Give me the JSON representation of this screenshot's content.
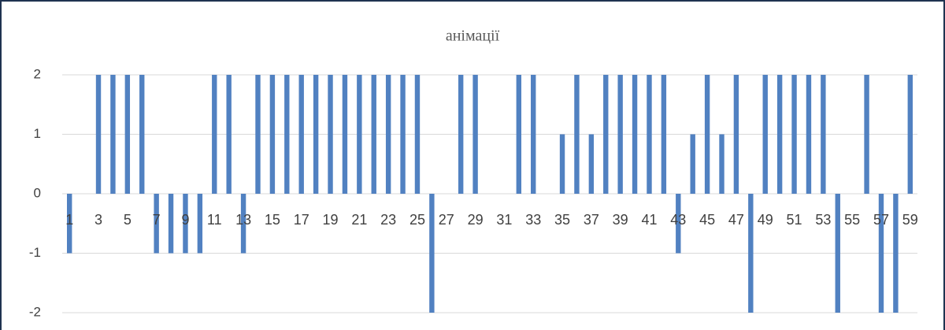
{
  "chart_data": {
    "type": "bar",
    "title": "анімації",
    "categories": [
      "1",
      null,
      "3",
      null,
      "5",
      null,
      "7",
      null,
      "9",
      null,
      "11",
      null,
      "13",
      null,
      "15",
      null,
      "17",
      null,
      "19",
      null,
      "21",
      null,
      "23",
      null,
      "25",
      null,
      "27",
      null,
      "29",
      null,
      "31",
      null,
      "33",
      null,
      "35",
      null,
      "37",
      null,
      "39",
      null,
      "41",
      null,
      "43",
      null,
      "45",
      null,
      "47",
      null,
      "49",
      null,
      "51",
      null,
      "53",
      null,
      "55",
      null,
      "57",
      null,
      "59"
    ],
    "values": [
      -1,
      0,
      2,
      2,
      2,
      2,
      -1,
      -1,
      -1,
      -1,
      2,
      2,
      -1,
      2,
      2,
      2,
      2,
      2,
      2,
      2,
      2,
      2,
      2,
      2,
      2,
      -2,
      0,
      2,
      2,
      0,
      0,
      2,
      2,
      0,
      1,
      2,
      1,
      2,
      2,
      2,
      2,
      2,
      -1,
      1,
      2,
      1,
      2,
      -2,
      2,
      2,
      2,
      2,
      2,
      -2,
      0,
      2,
      -2,
      -2,
      2
    ],
    "color": "#5181c1",
    "ylim": [
      -2,
      2
    ],
    "yticks": [
      -2,
      -1,
      0,
      1,
      2
    ],
    "grid": true
  }
}
